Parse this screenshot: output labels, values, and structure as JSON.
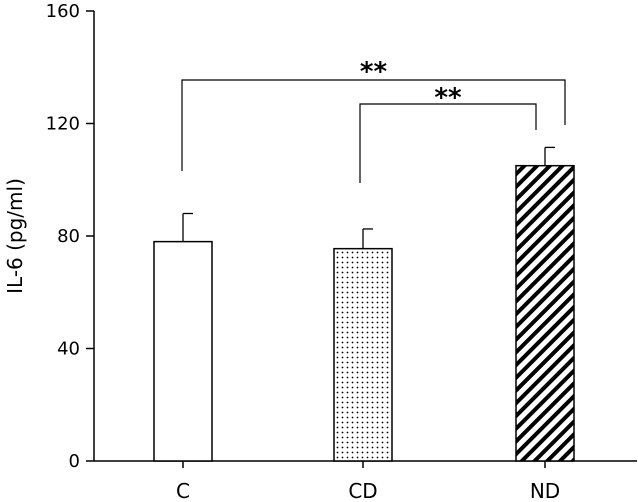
{
  "chart_data": {
    "type": "bar",
    "title": "",
    "xlabel": "",
    "ylabel": "IL-6 (pg/ml)",
    "ylim": [
      0,
      160
    ],
    "yticks": [
      0,
      40,
      80,
      120,
      160
    ],
    "grid": false,
    "categories": [
      "C",
      "CD",
      "ND"
    ],
    "values": [
      78,
      75.5,
      105
    ],
    "errors": [
      10,
      7,
      6.5
    ],
    "fills": [
      "empty",
      "dotted",
      "diagonal-hatch"
    ],
    "significance": [
      {
        "from": "C",
        "to": "ND",
        "label": "**"
      },
      {
        "from": "CD",
        "to": "ND",
        "label": "**"
      }
    ]
  }
}
